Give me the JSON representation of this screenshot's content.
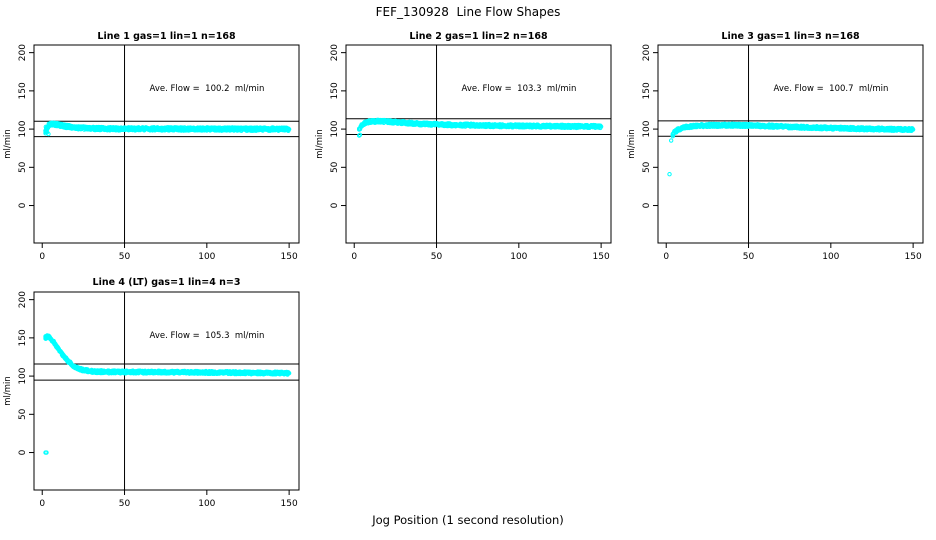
{
  "figure": {
    "title": "FEF_130928  Line Flow Shapes",
    "xlabel": "Jog Position (1 second resolution)",
    "background": "#ffffff",
    "point_color": "#00ffff",
    "axis_color": "#000000"
  },
  "chart_data": [
    {
      "type": "scatter",
      "title": "Line 1 gas=1 lin=1 n=168",
      "ylabel": "ml/min",
      "annotation": "Ave. Flow =  100.2  ml/min",
      "ave_flow": 100.2,
      "n": 168,
      "xlim": [
        -5,
        156
      ],
      "ylim": [
        -49,
        210
      ],
      "x_ticks": [
        0,
        50,
        100,
        150
      ],
      "y_ticks": [
        0,
        50,
        100,
        150,
        200
      ],
      "vline_x": 50,
      "ref_lines_y": [
        110.2,
        90.2
      ],
      "band_halfwidth": 2.1,
      "outliers": [
        [
          2,
          94.5
        ],
        [
          2.3,
          97
        ],
        [
          2.6,
          99.5
        ],
        [
          3,
          96
        ],
        [
          3.4,
          102
        ],
        [
          3.8,
          93.5
        ],
        [
          2.2,
          103
        ]
      ],
      "mean_curve": [
        [
          2,
          98
        ],
        [
          3,
          101
        ],
        [
          4,
          105
        ],
        [
          5,
          106.5
        ],
        [
          7,
          106.5
        ],
        [
          10,
          105.5
        ],
        [
          14,
          103.8
        ],
        [
          18,
          102.5
        ],
        [
          22,
          101.8
        ],
        [
          26,
          101.2
        ],
        [
          30,
          100.8
        ],
        [
          40,
          100.4
        ],
        [
          60,
          100.3
        ],
        [
          80,
          100.2
        ],
        [
          100,
          100.1
        ],
        [
          120,
          100
        ],
        [
          140,
          100
        ],
        [
          150,
          99.8
        ]
      ]
    },
    {
      "type": "scatter",
      "title": "Line 2 gas=1 lin=2 n=168",
      "ylabel": "ml/min",
      "annotation": "Ave. Flow =  103.3  ml/min",
      "ave_flow": 103.3,
      "n": 168,
      "xlim": [
        -5,
        156
      ],
      "ylim": [
        -49,
        210
      ],
      "x_ticks": [
        0,
        50,
        100,
        150
      ],
      "y_ticks": [
        0,
        50,
        100,
        150,
        200
      ],
      "vline_x": 50,
      "ref_lines_y": [
        113.6,
        93.0
      ],
      "band_halfwidth": 1.9,
      "outliers": [
        [
          3,
          91.5
        ],
        [
          3.5,
          92.5
        ]
      ],
      "mean_curve": [
        [
          3,
          99
        ],
        [
          4,
          103.5
        ],
        [
          5,
          106
        ],
        [
          6,
          107.5
        ],
        [
          8,
          109
        ],
        [
          10,
          109.8
        ],
        [
          13,
          110.2
        ],
        [
          16,
          110.2
        ],
        [
          20,
          109.8
        ],
        [
          25,
          109
        ],
        [
          30,
          108.3
        ],
        [
          35,
          107.6
        ],
        [
          40,
          107
        ],
        [
          50,
          106.2
        ],
        [
          60,
          105.6
        ],
        [
          70,
          105.1
        ],
        [
          80,
          104.7
        ],
        [
          90,
          104.3
        ],
        [
          100,
          104.1
        ],
        [
          110,
          103.9
        ],
        [
          120,
          103.7
        ],
        [
          130,
          103.5
        ],
        [
          140,
          103.4
        ],
        [
          150,
          103.3
        ]
      ]
    },
    {
      "type": "scatter",
      "title": "Line 3 gas=1 lin=3 n=168",
      "ylabel": "ml/min",
      "annotation": "Ave. Flow =  100.7  ml/min",
      "ave_flow": 100.7,
      "n": 168,
      "xlim": [
        -5,
        156
      ],
      "ylim": [
        -49,
        210
      ],
      "x_ticks": [
        0,
        50,
        100,
        150
      ],
      "y_ticks": [
        0,
        50,
        100,
        150,
        200
      ],
      "vline_x": 50,
      "ref_lines_y": [
        110.8,
        90.6
      ],
      "band_halfwidth": 1.9,
      "outliers": [
        [
          2,
          41
        ],
        [
          3,
          85
        ]
      ],
      "mean_curve": [
        [
          4,
          92.5
        ],
        [
          5,
          95.5
        ],
        [
          6,
          97.5
        ],
        [
          7,
          99
        ],
        [
          9,
          101
        ],
        [
          11,
          102.3
        ],
        [
          14,
          103.3
        ],
        [
          17,
          104
        ],
        [
          20,
          104.4
        ],
        [
          25,
          104.8
        ],
        [
          30,
          105
        ],
        [
          40,
          105
        ],
        [
          50,
          104.7
        ],
        [
          60,
          104.2
        ],
        [
          70,
          103.4
        ],
        [
          80,
          102.6
        ],
        [
          90,
          101.9
        ],
        [
          100,
          101.4
        ],
        [
          110,
          100.9
        ],
        [
          120,
          100.4
        ],
        [
          130,
          100
        ],
        [
          140,
          99.6
        ],
        [
          150,
          99.4
        ]
      ]
    },
    {
      "type": "scatter",
      "title": "Line 4 (LT) gas=1 lin=4 n=3",
      "ylabel": "ml/min",
      "annotation": "Ave. Flow =  105.3  ml/min",
      "ave_flow": 105.3,
      "n": 3,
      "xlim": [
        -5,
        156
      ],
      "ylim": [
        -49,
        210
      ],
      "x_ticks": [
        0,
        50,
        100,
        150
      ],
      "y_ticks": [
        0,
        50,
        100,
        150,
        200
      ],
      "vline_x": 50,
      "ref_lines_y": [
        115.8,
        94.8
      ],
      "band_halfwidth": 1.8,
      "outliers": [
        [
          2,
          0
        ],
        [
          2.6,
          0
        ],
        [
          2.2,
          149
        ],
        [
          3.2,
          152.5
        ],
        [
          4.2,
          150
        ]
      ],
      "mean_curve": [
        [
          2,
          150.5
        ],
        [
          3,
          151.5
        ],
        [
          4,
          151
        ],
        [
          5,
          149.5
        ],
        [
          6,
          147
        ],
        [
          7,
          144
        ],
        [
          8,
          141
        ],
        [
          9,
          138
        ],
        [
          10,
          135
        ],
        [
          11,
          132
        ],
        [
          12,
          129
        ],
        [
          13,
          126.5
        ],
        [
          14,
          124
        ],
        [
          15,
          121.5
        ],
        [
          16,
          119
        ],
        [
          17,
          117
        ],
        [
          18,
          115
        ],
        [
          19,
          113.5
        ],
        [
          20,
          112
        ],
        [
          21,
          111
        ],
        [
          22,
          110
        ],
        [
          24,
          108.5
        ],
        [
          26,
          107.5
        ],
        [
          28,
          106.8
        ],
        [
          30,
          106.3
        ],
        [
          34,
          105.8
        ],
        [
          40,
          105.5
        ],
        [
          50,
          105.4
        ],
        [
          60,
          105.3
        ],
        [
          70,
          105.2
        ],
        [
          80,
          105.1
        ],
        [
          90,
          105
        ],
        [
          100,
          104.8
        ],
        [
          110,
          104.6
        ],
        [
          120,
          104.4
        ],
        [
          130,
          104.2
        ],
        [
          140,
          104
        ],
        [
          150,
          103.8
        ]
      ]
    }
  ]
}
